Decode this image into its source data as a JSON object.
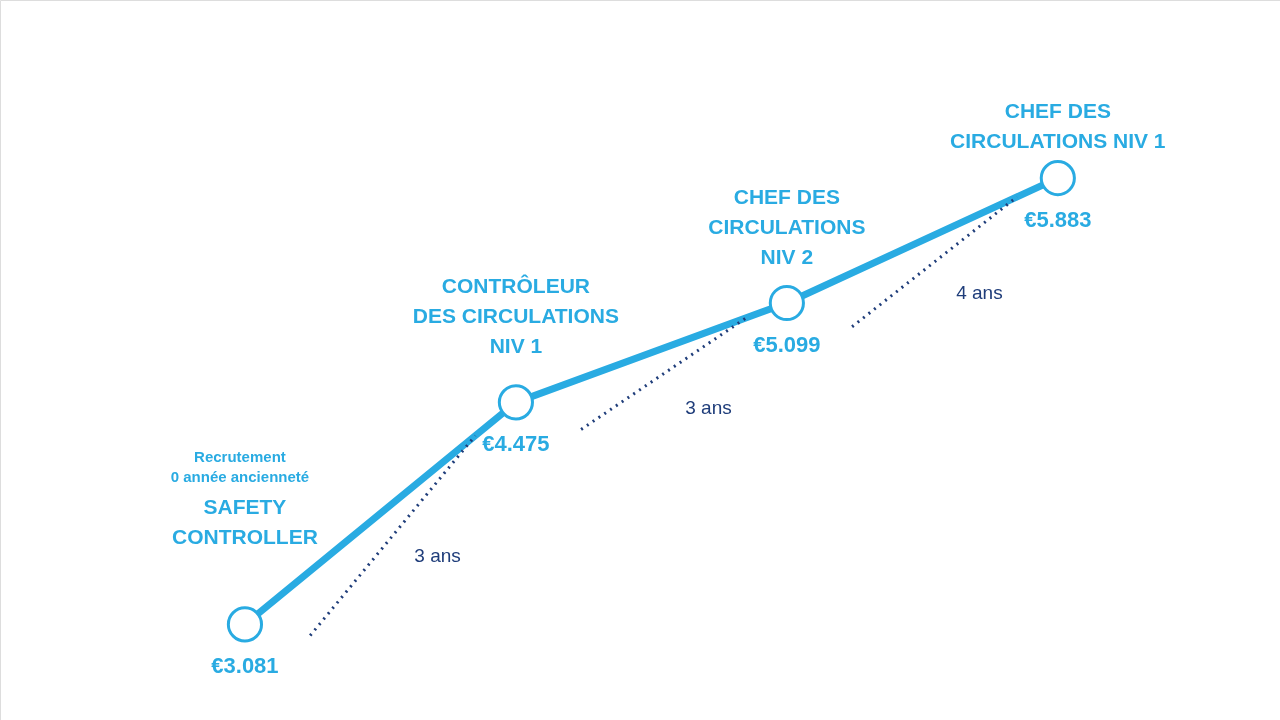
{
  "chart_data": {
    "type": "line",
    "categories": [
      "SAFETY\nCONTROLLER",
      "CONTRÔLEUR\nDES CIRCULATIONS\nNIV 1",
      "CHEF DES\nCIRCULATIONS\nNIV 2",
      "CHEF DES\nCIRCULATIONS NIV 1"
    ],
    "series": [
      {
        "color": "#29abe2",
        "values": [
          3081,
          4475,
          5099,
          5883
        ],
        "value_labels": [
          "€3.081",
          "€4.475",
          "€5.099",
          "€5.883"
        ]
      }
    ],
    "annotations": [
      "Recrutement\n0 année ancienneté",
      "3 ans",
      "3 ans",
      "4 ans"
    ],
    "marker": "circle",
    "line_style": "solid",
    "grid": false,
    "tick_labels": false
  }
}
